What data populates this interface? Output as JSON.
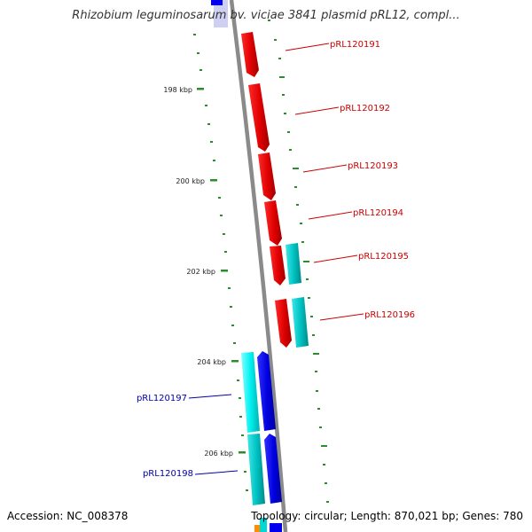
{
  "title": "Rhizobium leguminosarum bv. viciae 3841 plasmid pRL12, compl...",
  "accession": "Accession: NC_008378",
  "summary": "Topology: circular; Length: 870,021 bp; Genes: 780",
  "colors": {
    "backbone": "#8a8a8a",
    "forward_gene": "#ff0000",
    "reverse_gene": "#0000ee",
    "cyan_gene": "#00c8c8",
    "tick": "#2e8b2e",
    "forward_label": "#cc0000",
    "reverse_label": "#0000aa"
  },
  "scale_ticks": [
    {
      "kbp": 198,
      "label": "198 kbp"
    },
    {
      "kbp": 200,
      "label": "200 kbp"
    },
    {
      "kbp": 202,
      "label": "202 kbp"
    },
    {
      "kbp": 204,
      "label": "204 kbp"
    },
    {
      "kbp": 206,
      "label": "206 kbp"
    }
  ],
  "gene_labels": [
    {
      "text": "pRL120191",
      "strand": "forward"
    },
    {
      "text": "pRL120192",
      "strand": "forward"
    },
    {
      "text": "pRL120193",
      "strand": "forward"
    },
    {
      "text": "pRL120194",
      "strand": "forward"
    },
    {
      "text": "pRL120195",
      "strand": "forward"
    },
    {
      "text": "pRL120196",
      "strand": "forward"
    },
    {
      "text": "pRL120197",
      "strand": "reverse"
    },
    {
      "text": "pRL120198",
      "strand": "reverse"
    }
  ]
}
